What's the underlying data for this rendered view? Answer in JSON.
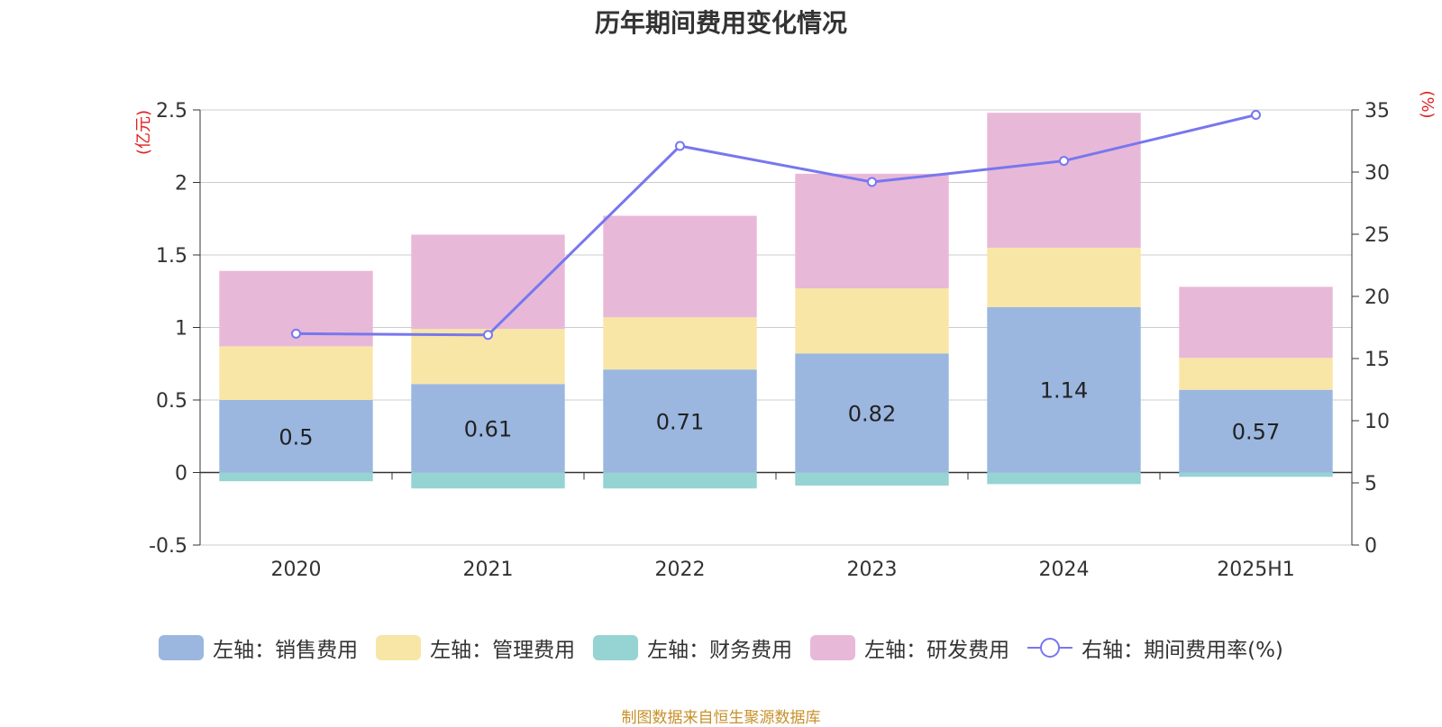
{
  "title": "历年期间费用变化情况",
  "source": "制图数据来自恒生聚源数据库",
  "chart_data": {
    "type": "bar",
    "stacked": true,
    "categories": [
      "2020",
      "2021",
      "2022",
      "2023",
      "2024",
      "2025H1"
    ],
    "left_axis": {
      "unit": "(亿元)",
      "ylim": [
        -0.5,
        2.5
      ],
      "ticks": [
        "-0.5",
        "0",
        "0.5",
        "1",
        "1.5",
        "2",
        "2.5"
      ]
    },
    "right_axis": {
      "unit": "(%)",
      "ylim": [
        0,
        35
      ],
      "ticks": [
        "0",
        "5",
        "10",
        "15",
        "20",
        "25",
        "30",
        "35"
      ]
    },
    "series": [
      {
        "name": "左轴：销售费用",
        "type": "bar",
        "axis": "left",
        "color": "#9bb7e0",
        "values": [
          0.5,
          0.61,
          0.71,
          0.82,
          1.14,
          0.57
        ],
        "show_labels": true,
        "labels": [
          "0.5",
          "0.61",
          "0.71",
          "0.82",
          "1.14",
          "0.57"
        ]
      },
      {
        "name": "左轴：管理费用",
        "type": "bar",
        "axis": "left",
        "color": "#f7e6a6",
        "values": [
          0.37,
          0.38,
          0.36,
          0.45,
          0.41,
          0.22
        ]
      },
      {
        "name": "左轴：财务费用",
        "type": "bar",
        "axis": "left",
        "color": "#96d3d3",
        "values": [
          -0.06,
          -0.11,
          -0.11,
          -0.09,
          -0.08,
          -0.03
        ]
      },
      {
        "name": "左轴：研发费用",
        "type": "bar",
        "axis": "left",
        "color": "#e8b8d9",
        "values": [
          0.52,
          0.65,
          0.7,
          0.79,
          0.93,
          0.49
        ]
      },
      {
        "name": "右轴：期间费用率(%)",
        "type": "line",
        "axis": "right",
        "color": "#7777ee",
        "values": [
          17.0,
          16.9,
          32.1,
          29.2,
          30.9,
          34.6
        ]
      }
    ],
    "grid": true,
    "legend_position": "bottom"
  }
}
